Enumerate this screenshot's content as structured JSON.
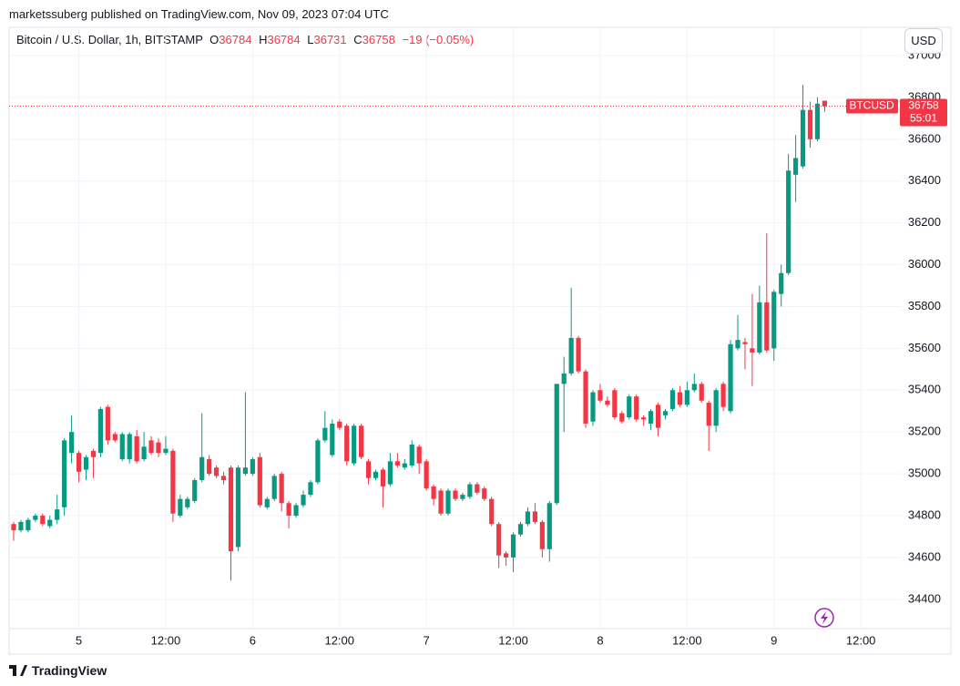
{
  "header": {
    "published": "marketssuberg published on TradingView.com, Nov 09, 2023 07:04 UTC",
    "o": "O",
    "h": "H",
    "l": "L",
    "c": "C",
    "change": "−19 (−0.05%)",
    "currency": "USD"
  },
  "footer": {
    "brand": "TradingView"
  },
  "chart_data": {
    "type": "candlestick",
    "title": "Bitcoin / U.S. Dollar, 1h, BITSTAMP",
    "categories": [
      null,
      null,
      null,
      null,
      null,
      null,
      null,
      null,
      null,
      "5",
      null,
      null,
      null,
      null,
      null,
      null,
      null,
      null,
      null,
      null,
      null,
      "12:00",
      null,
      null,
      null,
      null,
      null,
      null,
      null,
      null,
      null,
      null,
      null,
      "6",
      null,
      null,
      null,
      null,
      null,
      null,
      null,
      null,
      null,
      null,
      null,
      "12:00",
      null,
      null,
      null,
      null,
      null,
      null,
      null,
      null,
      null,
      null,
      null,
      "7",
      null,
      null,
      null,
      null,
      null,
      null,
      null,
      null,
      null,
      null,
      null,
      "12:00",
      null,
      null,
      null,
      null,
      null,
      null,
      null,
      null,
      null,
      null,
      null,
      "8",
      null,
      null,
      null,
      null,
      null,
      null,
      null,
      null,
      null,
      null,
      null,
      "12:00",
      null,
      null,
      null,
      null,
      null,
      null,
      null,
      null,
      null,
      null,
      null,
      "9",
      null,
      null,
      null,
      null,
      null,
      null,
      null,
      null,
      null,
      null,
      null,
      "12:00"
    ],
    "open": [
      34760,
      34730,
      34730,
      34780,
      34800,
      34750,
      34780,
      34840,
      35100,
      35100,
      35020,
      35110,
      35100,
      35320,
      35190,
      35070,
      35070,
      35180,
      35070,
      35160,
      35150,
      35100,
      35110,
      34800,
      34840,
      34870,
      34970,
      35070,
      35030,
      34990,
      35030,
      34650,
      35000,
      35000,
      35080,
      34840,
      34880,
      35000,
      34860,
      34800,
      34850,
      34900,
      34960,
      35160,
      35090,
      35250,
      35230,
      35050,
      35230,
      35060,
      34980,
      35020,
      34950,
      35060,
      35030,
      35040,
      35130,
      35060,
      34940,
      34920,
      34810,
      34920,
      34880,
      34890,
      34950,
      34930,
      34880,
      34760,
      34620,
      34600,
      34710,
      34760,
      34820,
      34770,
      34640,
      34860,
      35430,
      35480,
      35650,
      35490,
      35250,
      35400,
      35350,
      35400,
      35290,
      35270,
      35370,
      35270,
      35240,
      35330,
      35280,
      35310,
      35390,
      35330,
      35400,
      35430,
      35340,
      35230,
      35430,
      35300,
      35600,
      35630,
      35600,
      35580,
      35820,
      35600,
      35860,
      35960,
      36430,
      36470,
      36740,
      36600,
      36784,
      null,
      null,
      null,
      null,
      null
    ],
    "high": [
      34770,
      34780,
      34790,
      34810,
      34810,
      34800,
      34900,
      35170,
      35280,
      35110,
      35090,
      35120,
      35320,
      35330,
      35200,
      35200,
      35200,
      35210,
      35200,
      35180,
      35170,
      35180,
      35120,
      34900,
      34890,
      34980,
      35290,
      35090,
      35040,
      35010,
      35040,
      35040,
      35390,
      35080,
      35100,
      34890,
      35000,
      35010,
      34870,
      34860,
      34920,
      34970,
      35170,
      35300,
      35260,
      35260,
      35240,
      35240,
      35240,
      35070,
      35020,
      35030,
      35100,
      35100,
      35070,
      35160,
      35140,
      35070,
      34950,
      34930,
      34930,
      34930,
      34910,
      34960,
      34960,
      34940,
      34890,
      34770,
      34630,
      34720,
      34770,
      34840,
      34860,
      34780,
      34870,
      35430,
      35560,
      35890,
      35660,
      35500,
      35400,
      35430,
      35370,
      35410,
      35300,
      35380,
      35380,
      35280,
      35310,
      35340,
      35310,
      35410,
      35420,
      35440,
      35480,
      35440,
      35350,
      35410,
      35440,
      35640,
      35760,
      35650,
      35860,
      35900,
      36150,
      35880,
      36000,
      36530,
      36620,
      36860,
      36780,
      36800,
      36784,
      null,
      null,
      null,
      null,
      null
    ],
    "low": [
      34680,
      34720,
      34720,
      34770,
      34750,
      34740,
      34760,
      34800,
      35050,
      34960,
      34970,
      34980,
      35080,
      35140,
      35150,
      35060,
      35050,
      35050,
      35060,
      35090,
      35080,
      35090,
      34770,
      34790,
      34830,
      34860,
      34960,
      34990,
      34980,
      34950,
      34490,
      34630,
      34990,
      34990,
      34840,
      34830,
      34870,
      34820,
      34740,
      34790,
      34840,
      34890,
      34950,
      35150,
      35080,
      35210,
      35040,
      35040,
      35070,
      34950,
      34970,
      34840,
      34940,
      35030,
      35020,
      35030,
      35000,
      34920,
      34850,
      34800,
      34800,
      34870,
      34870,
      34880,
      34900,
      34870,
      34750,
      34550,
      34560,
      34530,
      34700,
      34750,
      34760,
      34600,
      34580,
      34850,
      35200,
      35470,
      35480,
      35220,
      35230,
      35340,
      35320,
      35260,
      35240,
      35260,
      35250,
      35230,
      35210,
      35180,
      35260,
      35300,
      35320,
      35320,
      35390,
      35340,
      35110,
      35200,
      35300,
      35290,
      35590,
      35500,
      35420,
      35570,
      35580,
      35540,
      35800,
      35950,
      36300,
      36460,
      36560,
      36590,
      36731,
      null,
      null,
      null,
      null,
      null
    ],
    "close": [
      34730,
      34770,
      34780,
      34800,
      34760,
      34780,
      34830,
      35160,
      35200,
      35010,
      35080,
      35080,
      35310,
      35160,
      35160,
      35190,
      35190,
      35060,
      35130,
      35100,
      35100,
      35120,
      34810,
      34880,
      34880,
      34970,
      35080,
      35000,
      34990,
      34970,
      34630,
      35030,
      35030,
      35070,
      34850,
      34880,
      34990,
      34860,
      34800,
      34850,
      34900,
      34960,
      35160,
      35220,
      35240,
      35220,
      35060,
      35230,
      35080,
      34980,
      35010,
      34940,
      35060,
      35040,
      35050,
      35140,
      35050,
      34930,
      34880,
      34810,
      34920,
      34880,
      34900,
      34950,
      34910,
      34880,
      34760,
      34610,
      34600,
      34710,
      34760,
      34820,
      34770,
      34640,
      34860,
      35430,
      35480,
      35650,
      35490,
      35240,
      35390,
      35350,
      35330,
      35270,
      35250,
      35370,
      35260,
      35260,
      35300,
      35220,
      35300,
      35400,
      35330,
      35400,
      35430,
      35350,
      35230,
      35400,
      35320,
      35620,
      35640,
      35620,
      35580,
      35820,
      35590,
      35870,
      35960,
      36450,
      36510,
      36740,
      36600,
      36770,
      36758,
      null,
      null,
      null,
      null,
      null
    ],
    "up_color": "#089981",
    "down_color": "#f23645",
    "ylim": [
      34260,
      37135
    ],
    "yticks": [
      34400,
      34600,
      34800,
      35000,
      35200,
      35400,
      35600,
      35800,
      36000,
      36200,
      36400,
      36600,
      36800,
      37000
    ],
    "grid": true,
    "last_label": "BTCUSD",
    "countdown": "55:01"
  }
}
